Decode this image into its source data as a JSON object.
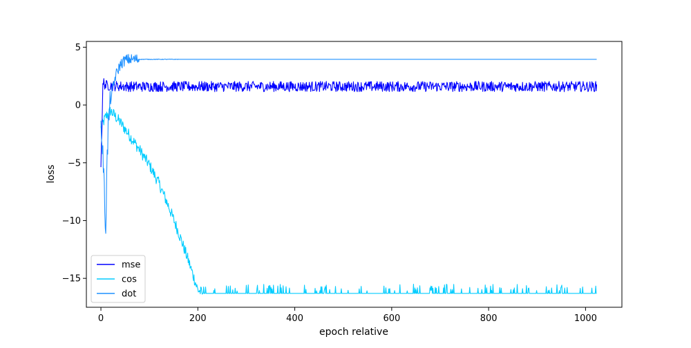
{
  "chart_data": {
    "type": "line",
    "title": "",
    "xlabel": "epoch relative",
    "ylabel": "loss",
    "xlim": [
      -30,
      1075
    ],
    "ylim": [
      -17.5,
      5.5
    ],
    "xticks": [
      0,
      200,
      400,
      600,
      800,
      1000
    ],
    "yticks": [
      5,
      0,
      -5,
      -10,
      -15
    ],
    "xtick_labels": [
      "0",
      "200",
      "400",
      "600",
      "800",
      "1000"
    ],
    "ytick_labels": [
      "5",
      "0",
      "−5",
      "−10",
      "−15"
    ],
    "grid": false,
    "legend_position": "lower-left",
    "series": [
      {
        "name": "mse",
        "color": "#0000ff",
        "description": "fast rise from ~-5 at epoch 0 to ~1.6 by epoch ~5, then noisy plateau",
        "x": [
          0,
          2,
          4,
          6,
          8,
          10,
          50,
          200,
          400,
          600,
          800,
          1023
        ],
        "values": [
          -5.0,
          -2.0,
          1.5,
          2.0,
          1.8,
          1.7,
          1.6,
          1.6,
          1.6,
          1.6,
          1.6,
          1.6
        ],
        "noise": 0.45
      },
      {
        "name": "cos",
        "color": "#00ccff",
        "description": "rises to ~-0.3 by epoch ~20, decays to ~-16 by epoch ~210, then flat with occasional spikes",
        "x": [
          0,
          5,
          10,
          20,
          40,
          60,
          80,
          100,
          120,
          140,
          160,
          180,
          200,
          210,
          400,
          600,
          800,
          1023
        ],
        "values": [
          -2.0,
          -1.5,
          -1.0,
          -0.5,
          -1.5,
          -2.7,
          -3.9,
          -5.2,
          -6.8,
          -8.8,
          -11.0,
          -13.4,
          -16.0,
          -16.3,
          -16.3,
          -16.3,
          -16.3,
          -16.3
        ],
        "noise": 0.5
      },
      {
        "name": "dot",
        "color": "#1e90ff",
        "description": "big early dip to ~-10.5 at epoch ~10, then rises to ~3.9 by epoch ~70 and stays flat",
        "x": [
          0,
          5,
          8,
          10,
          12,
          15,
          20,
          30,
          40,
          50,
          60,
          80,
          100,
          130,
          160,
          1023
        ],
        "values": [
          -1.5,
          -5.0,
          -9.0,
          -10.5,
          -6.0,
          -2.0,
          0.5,
          2.5,
          3.5,
          3.9,
          3.95,
          3.95,
          3.95,
          3.95,
          3.95,
          3.95
        ],
        "noise": 0.4
      }
    ]
  }
}
